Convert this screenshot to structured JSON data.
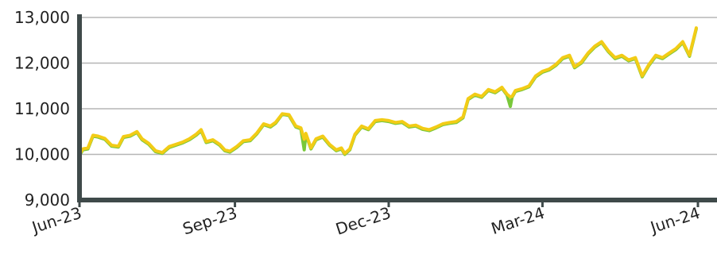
{
  "chart_data": {
    "type": "line",
    "title": "",
    "xlabel": "",
    "ylabel": "",
    "ylim": [
      9000,
      13000
    ],
    "y_ticks": [
      {
        "value": 9000,
        "label": "9,000"
      },
      {
        "value": 10000,
        "label": "10,000"
      },
      {
        "value": 11000,
        "label": "11,000"
      },
      {
        "value": 12000,
        "label": "12,000"
      },
      {
        "value": 13000,
        "label": "13,000"
      }
    ],
    "x_ticks": [
      {
        "date": "2023-06-01",
        "label": "Jun-23"
      },
      {
        "date": "2023-09-01",
        "label": "Sep-23"
      },
      {
        "date": "2023-12-01",
        "label": "Dec-23"
      },
      {
        "date": "2024-03-01",
        "label": "Mar-24"
      },
      {
        "date": "2024-06-01",
        "label": "Jun-24"
      }
    ],
    "xlim": [
      "2023-06-01",
      "2024-06-01"
    ],
    "grid": "horizontal",
    "colors": {
      "gold": "#f2cc16",
      "green": "#79c83a",
      "axis": "#3f4a4a",
      "grid": "#b5b5b5"
    },
    "series": [
      {
        "color": "#79c83a",
        "points": [
          [
            "2023-06-01",
            9980
          ],
          [
            "2023-06-03",
            10100
          ],
          [
            "2023-06-06",
            10120
          ],
          [
            "2023-06-09",
            10400
          ],
          [
            "2023-06-12",
            10380
          ],
          [
            "2023-06-16",
            10330
          ],
          [
            "2023-06-20",
            10180
          ],
          [
            "2023-06-24",
            10160
          ],
          [
            "2023-06-27",
            10370
          ],
          [
            "2023-07-01",
            10400
          ],
          [
            "2023-07-05",
            10480
          ],
          [
            "2023-07-08",
            10320
          ],
          [
            "2023-07-12",
            10220
          ],
          [
            "2023-07-16",
            10060
          ],
          [
            "2023-07-20",
            10020
          ],
          [
            "2023-07-24",
            10150
          ],
          [
            "2023-07-28",
            10200
          ],
          [
            "2023-08-01",
            10250
          ],
          [
            "2023-08-05",
            10320
          ],
          [
            "2023-08-09",
            10420
          ],
          [
            "2023-08-12",
            10520
          ],
          [
            "2023-08-15",
            10260
          ],
          [
            "2023-08-19",
            10300
          ],
          [
            "2023-08-23",
            10200
          ],
          [
            "2023-08-26",
            10080
          ],
          [
            "2023-08-29",
            10050
          ],
          [
            "2023-09-02",
            10150
          ],
          [
            "2023-09-06",
            10280
          ],
          [
            "2023-09-10",
            10300
          ],
          [
            "2023-09-14",
            10450
          ],
          [
            "2023-09-18",
            10650
          ],
          [
            "2023-09-22",
            10600
          ],
          [
            "2023-09-25",
            10680
          ],
          [
            "2023-09-29",
            10880
          ],
          [
            "2023-10-03",
            10850
          ],
          [
            "2023-10-07",
            10600
          ],
          [
            "2023-10-10",
            10560
          ],
          [
            "2023-10-12",
            10100
          ],
          [
            "2023-10-13",
            10440
          ],
          [
            "2023-10-16",
            10120
          ],
          [
            "2023-10-19",
            10320
          ],
          [
            "2023-10-23",
            10380
          ],
          [
            "2023-10-27",
            10200
          ],
          [
            "2023-10-31",
            10080
          ],
          [
            "2023-11-03",
            10120
          ],
          [
            "2023-11-05",
            10000
          ],
          [
            "2023-11-08",
            10100
          ],
          [
            "2023-11-11",
            10420
          ],
          [
            "2023-11-15",
            10600
          ],
          [
            "2023-11-19",
            10540
          ],
          [
            "2023-11-23",
            10720
          ],
          [
            "2023-11-27",
            10740
          ],
          [
            "2023-12-01",
            10720
          ],
          [
            "2023-12-05",
            10680
          ],
          [
            "2023-12-09",
            10700
          ],
          [
            "2023-12-13",
            10600
          ],
          [
            "2023-12-17",
            10620
          ],
          [
            "2023-12-21",
            10550
          ],
          [
            "2023-12-25",
            10520
          ],
          [
            "2023-12-29",
            10580
          ],
          [
            "2024-01-02",
            10650
          ],
          [
            "2024-01-06",
            10680
          ],
          [
            "2024-01-10",
            10700
          ],
          [
            "2024-01-14",
            10800
          ],
          [
            "2024-01-17",
            11200
          ],
          [
            "2024-01-21",
            11300
          ],
          [
            "2024-01-25",
            11250
          ],
          [
            "2024-01-29",
            11400
          ],
          [
            "2024-02-02",
            11350
          ],
          [
            "2024-02-06",
            11450
          ],
          [
            "2024-02-09",
            11300
          ],
          [
            "2024-02-11",
            11050
          ],
          [
            "2024-02-12",
            11250
          ],
          [
            "2024-02-14",
            11380
          ],
          [
            "2024-02-18",
            11420
          ],
          [
            "2024-02-22",
            11480
          ],
          [
            "2024-02-26",
            11700
          ],
          [
            "2024-03-01",
            11800
          ],
          [
            "2024-03-05",
            11850
          ],
          [
            "2024-03-09",
            11950
          ],
          [
            "2024-03-13",
            12100
          ],
          [
            "2024-03-17",
            12150
          ],
          [
            "2024-03-20",
            11900
          ],
          [
            "2024-03-24",
            12000
          ],
          [
            "2024-03-28",
            12200
          ],
          [
            "2024-04-01",
            12350
          ],
          [
            "2024-04-05",
            12450
          ],
          [
            "2024-04-09",
            12250
          ],
          [
            "2024-04-13",
            12100
          ],
          [
            "2024-04-17",
            12150
          ],
          [
            "2024-04-21",
            12050
          ],
          [
            "2024-04-25",
            12100
          ],
          [
            "2024-04-29",
            11700
          ],
          [
            "2024-05-03",
            11950
          ],
          [
            "2024-05-07",
            12150
          ],
          [
            "2024-05-11",
            12100
          ],
          [
            "2024-05-15",
            12200
          ],
          [
            "2024-05-19",
            12300
          ],
          [
            "2024-05-23",
            12450
          ],
          [
            "2024-05-27",
            12150
          ],
          [
            "2024-05-31",
            12750
          ]
        ]
      },
      {
        "color": "#f2cc16",
        "points": [
          [
            "2023-06-01",
            10000
          ],
          [
            "2023-06-03",
            10120
          ],
          [
            "2023-06-06",
            10140
          ],
          [
            "2023-06-09",
            10420
          ],
          [
            "2023-06-12",
            10400
          ],
          [
            "2023-06-16",
            10350
          ],
          [
            "2023-06-20",
            10200
          ],
          [
            "2023-06-24",
            10180
          ],
          [
            "2023-06-27",
            10390
          ],
          [
            "2023-07-01",
            10420
          ],
          [
            "2023-07-05",
            10500
          ],
          [
            "2023-07-08",
            10340
          ],
          [
            "2023-07-12",
            10240
          ],
          [
            "2023-07-16",
            10080
          ],
          [
            "2023-07-20",
            10040
          ],
          [
            "2023-07-24",
            10170
          ],
          [
            "2023-07-28",
            10220
          ],
          [
            "2023-08-01",
            10270
          ],
          [
            "2023-08-05",
            10340
          ],
          [
            "2023-08-09",
            10440
          ],
          [
            "2023-08-12",
            10540
          ],
          [
            "2023-08-15",
            10280
          ],
          [
            "2023-08-19",
            10320
          ],
          [
            "2023-08-23",
            10220
          ],
          [
            "2023-08-26",
            10100
          ],
          [
            "2023-08-29",
            10070
          ],
          [
            "2023-09-02",
            10170
          ],
          [
            "2023-09-06",
            10300
          ],
          [
            "2023-09-10",
            10320
          ],
          [
            "2023-09-14",
            10470
          ],
          [
            "2023-09-18",
            10670
          ],
          [
            "2023-09-22",
            10620
          ],
          [
            "2023-09-25",
            10700
          ],
          [
            "2023-09-29",
            10890
          ],
          [
            "2023-10-03",
            10870
          ],
          [
            "2023-10-07",
            10620
          ],
          [
            "2023-10-10",
            10580
          ],
          [
            "2023-10-12",
            10330
          ],
          [
            "2023-10-13",
            10460
          ],
          [
            "2023-10-16",
            10140
          ],
          [
            "2023-10-19",
            10340
          ],
          [
            "2023-10-23",
            10400
          ],
          [
            "2023-10-27",
            10220
          ],
          [
            "2023-10-31",
            10100
          ],
          [
            "2023-11-03",
            10140
          ],
          [
            "2023-11-05",
            10020
          ],
          [
            "2023-11-08",
            10120
          ],
          [
            "2023-11-11",
            10440
          ],
          [
            "2023-11-15",
            10620
          ],
          [
            "2023-11-19",
            10560
          ],
          [
            "2023-11-23",
            10740
          ],
          [
            "2023-11-27",
            10760
          ],
          [
            "2023-12-01",
            10740
          ],
          [
            "2023-12-05",
            10700
          ],
          [
            "2023-12-09",
            10720
          ],
          [
            "2023-12-13",
            10620
          ],
          [
            "2023-12-17",
            10640
          ],
          [
            "2023-12-21",
            10570
          ],
          [
            "2023-12-25",
            10540
          ],
          [
            "2023-12-29",
            10600
          ],
          [
            "2024-01-02",
            10670
          ],
          [
            "2024-01-06",
            10700
          ],
          [
            "2024-01-10",
            10720
          ],
          [
            "2024-01-14",
            10820
          ],
          [
            "2024-01-17",
            11220
          ],
          [
            "2024-01-21",
            11320
          ],
          [
            "2024-01-25",
            11270
          ],
          [
            "2024-01-29",
            11420
          ],
          [
            "2024-02-02",
            11370
          ],
          [
            "2024-02-06",
            11470
          ],
          [
            "2024-02-09",
            11320
          ],
          [
            "2024-02-11",
            11260
          ],
          [
            "2024-02-12",
            11270
          ],
          [
            "2024-02-14",
            11400
          ],
          [
            "2024-02-18",
            11440
          ],
          [
            "2024-02-22",
            11500
          ],
          [
            "2024-02-26",
            11720
          ],
          [
            "2024-03-01",
            11820
          ],
          [
            "2024-03-05",
            11870
          ],
          [
            "2024-03-09",
            11970
          ],
          [
            "2024-03-13",
            12120
          ],
          [
            "2024-03-17",
            12170
          ],
          [
            "2024-03-20",
            11920
          ],
          [
            "2024-03-24",
            12020
          ],
          [
            "2024-03-28",
            12220
          ],
          [
            "2024-04-01",
            12370
          ],
          [
            "2024-04-05",
            12470
          ],
          [
            "2024-04-09",
            12270
          ],
          [
            "2024-04-13",
            12120
          ],
          [
            "2024-04-17",
            12170
          ],
          [
            "2024-04-21",
            12070
          ],
          [
            "2024-04-25",
            12120
          ],
          [
            "2024-04-29",
            11720
          ],
          [
            "2024-05-03",
            11970
          ],
          [
            "2024-05-07",
            12170
          ],
          [
            "2024-05-11",
            12120
          ],
          [
            "2024-05-15",
            12220
          ],
          [
            "2024-05-19",
            12320
          ],
          [
            "2024-05-23",
            12470
          ],
          [
            "2024-05-27",
            12170
          ],
          [
            "2024-05-31",
            12770
          ]
        ]
      }
    ]
  }
}
